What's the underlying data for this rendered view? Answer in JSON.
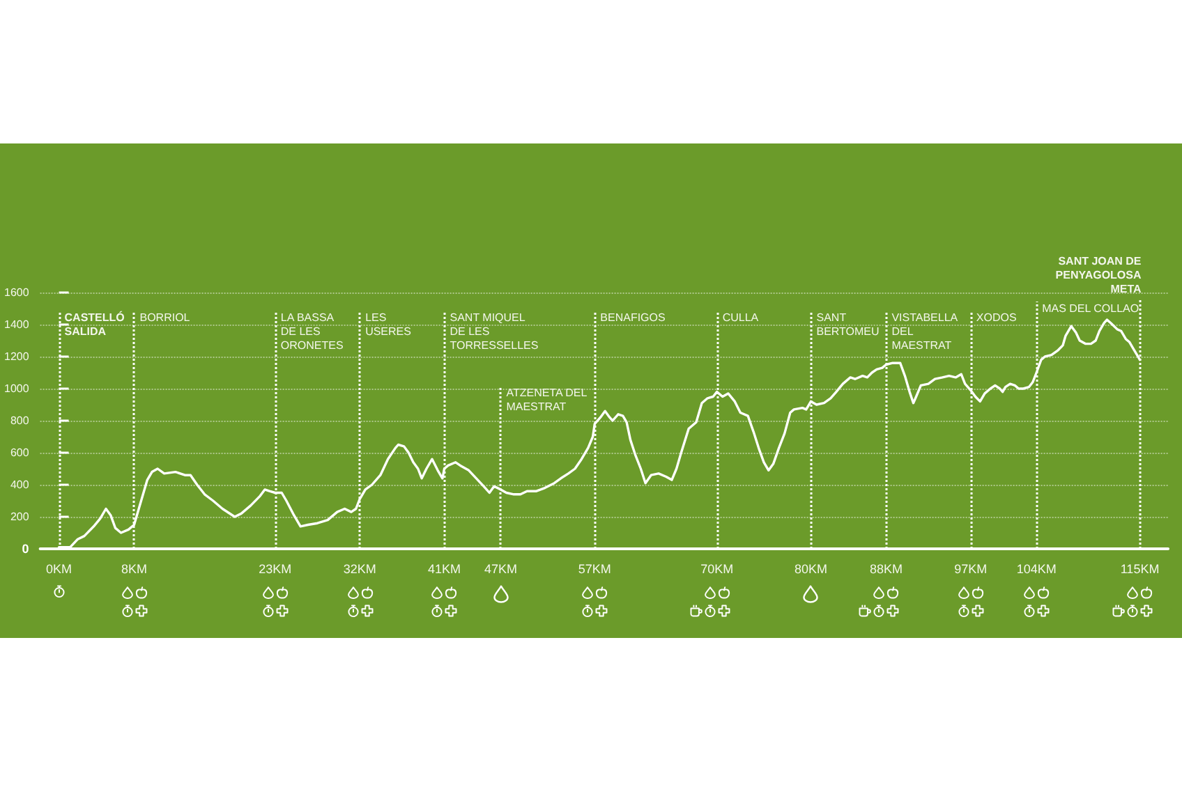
{
  "chart_data": {
    "type": "line",
    "color": "#ffffff",
    "marker": "none",
    "grid": "y",
    "x": [
      0,
      1.2,
      2.0,
      2.7,
      3.7,
      4.4,
      5.0,
      5.5,
      6.0,
      6.6,
      7.4,
      8.0,
      8.4,
      8.9,
      9.4,
      9.9,
      10.5,
      11.2,
      12.4,
      13.4,
      14.0,
      14.7,
      15.5,
      16.4,
      17.4,
      18.7,
      19.4,
      20.4,
      21.4,
      21.9,
      22.4,
      23.0,
      23.7,
      24.2,
      25.0,
      25.7,
      26.5,
      27.5,
      28.6,
      29.6,
      30.4,
      31.1,
      31.6,
      32.0,
      32.6,
      33.3,
      34.2,
      35.0,
      35.8,
      36.1,
      36.7,
      37.2,
      37.7,
      38.2,
      38.6,
      39.1,
      39.7,
      40.3,
      40.8,
      41.0,
      41.4,
      42.2,
      42.7,
      43.6,
      44.4,
      45.2,
      45.8,
      46.3,
      47.0,
      47.6,
      48.4,
      49.1,
      49.8,
      50.8,
      51.7,
      52.7,
      53.4,
      54.2,
      54.9,
      55.6,
      56.3,
      56.8,
      57.0,
      57.6,
      58.1,
      58.6,
      58.9,
      59.5,
      60.0,
      60.4,
      60.8,
      61.3,
      61.9,
      62.4,
      63.0,
      63.8,
      64.6,
      65.2,
      65.7,
      66.2,
      67.0,
      67.8,
      68.4,
      69.0,
      69.6,
      70.0,
      70.6,
      71.2,
      71.9,
      72.5,
      73.3,
      73.9,
      74.5,
      75.0,
      75.5,
      76.0,
      76.6,
      77.2,
      77.8,
      78.2,
      79.1,
      79.5,
      80.0,
      80.6,
      81.4,
      82.1,
      82.7,
      83.4,
      84.2,
      84.7,
      85.5,
      86.0,
      86.5,
      87.0,
      87.6,
      88.0,
      88.7,
      89.5,
      90.0,
      90.5,
      90.9,
      91.2,
      91.7,
      92.5,
      93.2,
      94.0,
      94.7,
      95.4,
      96.0,
      96.4,
      97.0,
      97.5,
      98.0,
      98.5,
      99.1,
      99.6,
      100.1,
      100.4,
      100.7,
      101.2,
      101.7,
      102.1,
      102.6,
      103.2,
      103.6,
      104.0,
      104.5,
      104.9,
      105.6,
      106.3,
      106.8,
      107.1,
      107.5,
      107.7,
      108.2,
      108.6,
      109.2,
      109.8,
      110.3,
      110.7,
      111.2,
      111.5,
      111.9,
      112.6,
      113.0,
      113.5,
      113.9,
      114.4,
      114.8,
      115.0
    ],
    "values": [
      10,
      10,
      60,
      80,
      140,
      190,
      250,
      210,
      130,
      100,
      120,
      150,
      230,
      330,
      430,
      480,
      500,
      470,
      480,
      460,
      460,
      400,
      340,
      300,
      250,
      200,
      220,
      270,
      330,
      370,
      360,
      350,
      350,
      300,
      210,
      140,
      150,
      160,
      180,
      230,
      250,
      230,
      250,
      310,
      370,
      400,
      460,
      560,
      630,
      650,
      640,
      600,
      540,
      500,
      440,
      500,
      560,
      490,
      440,
      500,
      520,
      540,
      520,
      490,
      440,
      390,
      350,
      390,
      370,
      350,
      340,
      340,
      360,
      360,
      380,
      410,
      440,
      470,
      500,
      560,
      630,
      700,
      780,
      820,
      860,
      820,
      800,
      840,
      830,
      790,
      680,
      590,
      500,
      410,
      460,
      470,
      450,
      430,
      500,
      600,
      750,
      790,
      910,
      940,
      950,
      980,
      950,
      970,
      920,
      850,
      830,
      730,
      620,
      540,
      490,
      530,
      630,
      720,
      850,
      870,
      880,
      870,
      920,
      900,
      910,
      940,
      980,
      1030,
      1070,
      1060,
      1080,
      1070,
      1100,
      1120,
      1130,
      1150,
      1160,
      1160,
      1080,
      980,
      910,
      950,
      1020,
      1030,
      1060,
      1070,
      1080,
      1070,
      1090,
      1030,
      990,
      950,
      920,
      970,
      1000,
      1020,
      1000,
      980,
      1010,
      1030,
      1020,
      1000,
      1000,
      1010,
      1040,
      1100,
      1180,
      1200,
      1210,
      1240,
      1270,
      1330,
      1370,
      1390,
      1350,
      1300,
      1280,
      1280,
      1300,
      1360,
      1410,
      1430,
      1410,
      1370,
      1360,
      1310,
      1290,
      1240,
      1200,
      1180
    ],
    "xlim": [
      -2,
      118
    ],
    "xticks": [
      {
        "value": 0,
        "label": "0KM"
      },
      {
        "value": 8,
        "label": "8KM"
      },
      {
        "value": 23,
        "label": "23KM"
      },
      {
        "value": 32,
        "label": "32KM"
      },
      {
        "value": 41,
        "label": "41KM"
      },
      {
        "value": 47,
        "label": "47KM"
      },
      {
        "value": 57,
        "label": "57KM"
      },
      {
        "value": 70,
        "label": "70KM"
      },
      {
        "value": 80,
        "label": "80KM"
      },
      {
        "value": 88,
        "label": "88KM"
      },
      {
        "value": 97,
        "label": "97KM"
      },
      {
        "value": 104,
        "label": "104KM"
      },
      {
        "value": 115,
        "label": "115KM"
      }
    ],
    "ylim": [
      0,
      1600
    ],
    "yticks": [
      0,
      200,
      400,
      600,
      800,
      1000,
      1200,
      1400,
      1600
    ],
    "ref_lines": [
      {
        "axis": "x",
        "value": 0,
        "label": "CASTELLÓ\nSALIDA",
        "color": "#ffffff",
        "line_style": "dotted"
      },
      {
        "axis": "x",
        "value": 8,
        "label": "BORRIOL",
        "color": "#ffffff",
        "line_style": "dotted"
      },
      {
        "axis": "x",
        "value": 23,
        "label": "LA BASSA\nDE LES\nORONETES",
        "color": "#ffffff",
        "line_style": "dotted"
      },
      {
        "axis": "x",
        "value": 32,
        "label": "LES\nUSERES",
        "color": "#ffffff",
        "line_style": "dotted"
      },
      {
        "axis": "x",
        "value": 41,
        "label": "SANT MIQUEL\nDE LES\nTORRESSELLES",
        "color": "#ffffff",
        "line_style": "dotted"
      },
      {
        "axis": "x",
        "value": 47,
        "label": "ATZENETA DEL\nMAESTRAT",
        "color": "#ffffff",
        "line_style": "dotted"
      },
      {
        "axis": "x",
        "value": 57,
        "label": "BENAFIGOS",
        "color": "#ffffff",
        "line_style": "dotted"
      },
      {
        "axis": "x",
        "value": 70,
        "label": "CULLA",
        "color": "#ffffff",
        "line_style": "dotted"
      },
      {
        "axis": "x",
        "value": 80,
        "label": "SANT\nBERTOMEU",
        "color": "#ffffff",
        "line_style": "dotted"
      },
      {
        "axis": "x",
        "value": 88,
        "label": "VISTABELLA\nDEL\nMAESTRAT",
        "color": "#ffffff",
        "line_style": "dotted"
      },
      {
        "axis": "x",
        "value": 97,
        "label": "XODOS",
        "color": "#ffffff",
        "line_style": "dotted"
      },
      {
        "axis": "x",
        "value": 104,
        "label": "MAS DEL COLLAO",
        "color": "#ffffff",
        "line_style": "dotted"
      },
      {
        "axis": "x",
        "value": 115,
        "label": "SANT JOAN DE\nPENYAGOLOSA\nMETA",
        "color": "#ffffff",
        "line_style": "dotted"
      }
    ]
  }
}
